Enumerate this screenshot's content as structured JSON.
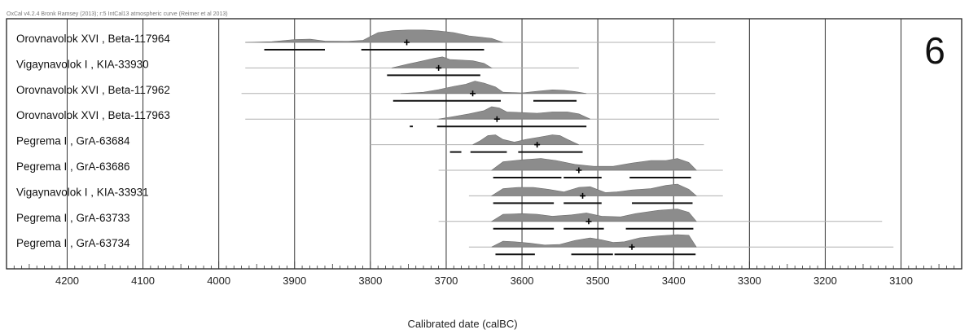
{
  "credit": "OxCal v4.2.4 Bronk Ramsey (2013); r:5 IntCal13 atmospheric curve (Reimer et al 2013)",
  "panel_number": "6",
  "chart_data": {
    "type": "calibration-plot",
    "xlabel": "Calibrated date (calBC)",
    "xlim": [
      4280,
      3020
    ],
    "x_ticks": [
      4200,
      4100,
      4000,
      3900,
      3800,
      3700,
      3600,
      3500,
      3400,
      3300,
      3200,
      3100
    ],
    "grid": true,
    "colors": {
      "distribution": "#8c8c8c",
      "range_bar": "#111111",
      "grid": "#333333",
      "baseline": "#b0b0b0"
    },
    "samples": [
      {
        "label": "Orovnavolok XVI , Beta-117964",
        "median": 3752,
        "span": [
          3965,
          3345
        ],
        "ranges": [
          [
            3940,
            3860
          ],
          [
            3812,
            3650
          ]
        ],
        "dist": [
          [
            3965,
            0
          ],
          [
            3930,
            0.05
          ],
          [
            3900,
            0.22
          ],
          [
            3880,
            0.25
          ],
          [
            3860,
            0.1
          ],
          [
            3830,
            0.08
          ],
          [
            3810,
            0.15
          ],
          [
            3790,
            0.75
          ],
          [
            3770,
            0.9
          ],
          [
            3750,
            0.95
          ],
          [
            3730,
            0.95
          ],
          [
            3710,
            0.88
          ],
          [
            3690,
            0.75
          ],
          [
            3670,
            0.5
          ],
          [
            3655,
            0.4
          ],
          [
            3640,
            0.3
          ],
          [
            3625,
            0
          ]
        ]
      },
      {
        "label": "Vigaynavolok I , KIA-33930",
        "median": 3710,
        "span": [
          3965,
          3525
        ],
        "ranges": [
          [
            3778,
            3655
          ]
        ],
        "dist": [
          [
            3772,
            0
          ],
          [
            3750,
            0.3
          ],
          [
            3730,
            0.55
          ],
          [
            3715,
            0.75
          ],
          [
            3705,
            0.85
          ],
          [
            3695,
            0.65
          ],
          [
            3680,
            0.6
          ],
          [
            3665,
            0.55
          ],
          [
            3650,
            0.35
          ],
          [
            3640,
            0
          ]
        ]
      },
      {
        "label": "Orovnavolok XVI , Beta-117962",
        "median": 3665,
        "span": [
          3970,
          3345
        ],
        "ranges": [
          [
            3770,
            3628
          ],
          [
            3585,
            3528
          ]
        ],
        "dist": [
          [
            3760,
            0
          ],
          [
            3730,
            0.1
          ],
          [
            3710,
            0.3
          ],
          [
            3690,
            0.55
          ],
          [
            3675,
            0.7
          ],
          [
            3662,
            0.95
          ],
          [
            3650,
            0.8
          ],
          [
            3635,
            0.5
          ],
          [
            3625,
            0.1
          ],
          [
            3600,
            0.05
          ],
          [
            3575,
            0.2
          ],
          [
            3560,
            0.28
          ],
          [
            3545,
            0.25
          ],
          [
            3530,
            0.15
          ],
          [
            3515,
            0
          ]
        ]
      },
      {
        "label": "Orovnavolok XVI , Beta-117963",
        "median": 3633,
        "span": [
          3965,
          3340
        ],
        "ranges": [
          [
            3748,
            3744
          ],
          [
            3712,
            3515
          ]
        ],
        "dist": [
          [
            3710,
            0
          ],
          [
            3690,
            0.2
          ],
          [
            3670,
            0.4
          ],
          [
            3650,
            0.65
          ],
          [
            3640,
            0.95
          ],
          [
            3630,
            0.85
          ],
          [
            3620,
            0.55
          ],
          [
            3600,
            0.5
          ],
          [
            3580,
            0.45
          ],
          [
            3560,
            0.55
          ],
          [
            3540,
            0.55
          ],
          [
            3525,
            0.4
          ],
          [
            3510,
            0
          ]
        ]
      },
      {
        "label": "Pegrema I , GrA-63684",
        "median": 3580,
        "span": [
          3800,
          3360
        ],
        "ranges": [
          [
            3695,
            3680
          ],
          [
            3668,
            3620
          ],
          [
            3605,
            3520
          ]
        ],
        "dist": [
          [
            3665,
            0
          ],
          [
            3655,
            0.3
          ],
          [
            3645,
            0.7
          ],
          [
            3635,
            0.75
          ],
          [
            3625,
            0.4
          ],
          [
            3610,
            0.2
          ],
          [
            3595,
            0.4
          ],
          [
            3575,
            0.6
          ],
          [
            3560,
            0.75
          ],
          [
            3550,
            0.7
          ],
          [
            3540,
            0.4
          ],
          [
            3525,
            0
          ]
        ]
      },
      {
        "label": "Pegrema I , GrA-63686",
        "median": 3525,
        "span": [
          3710,
          3335
        ],
        "ranges": [
          [
            3638,
            3548
          ],
          [
            3545,
            3495
          ],
          [
            3458,
            3377
          ]
        ],
        "dist": [
          [
            3640,
            0
          ],
          [
            3625,
            0.65
          ],
          [
            3600,
            0.8
          ],
          [
            3575,
            0.9
          ],
          [
            3555,
            0.75
          ],
          [
            3530,
            0.45
          ],
          [
            3505,
            0.3
          ],
          [
            3480,
            0.3
          ],
          [
            3455,
            0.55
          ],
          [
            3430,
            0.75
          ],
          [
            3410,
            0.75
          ],
          [
            3395,
            0.9
          ],
          [
            3380,
            0.6
          ],
          [
            3370,
            0
          ]
        ]
      },
      {
        "label": "Vigaynavolok I , KIA-33931",
        "median": 3520,
        "span": [
          3670,
          3335
        ],
        "ranges": [
          [
            3638,
            3558
          ],
          [
            3545,
            3495
          ],
          [
            3455,
            3375
          ]
        ],
        "dist": [
          [
            3640,
            0
          ],
          [
            3625,
            0.55
          ],
          [
            3605,
            0.65
          ],
          [
            3585,
            0.65
          ],
          [
            3565,
            0.5
          ],
          [
            3545,
            0.3
          ],
          [
            3525,
            0.65
          ],
          [
            3510,
            0.7
          ],
          [
            3490,
            0.25
          ],
          [
            3475,
            0.3
          ],
          [
            3455,
            0.45
          ],
          [
            3430,
            0.55
          ],
          [
            3410,
            0.8
          ],
          [
            3395,
            0.9
          ],
          [
            3380,
            0.5
          ],
          [
            3370,
            0
          ]
        ]
      },
      {
        "label": "Pegrema I , GrA-63733",
        "median": 3512,
        "span": [
          3710,
          3125
        ],
        "ranges": [
          [
            3638,
            3558
          ],
          [
            3545,
            3492
          ],
          [
            3463,
            3374
          ]
        ],
        "dist": [
          [
            3640,
            0
          ],
          [
            3625,
            0.55
          ],
          [
            3600,
            0.6
          ],
          [
            3580,
            0.55
          ],
          [
            3560,
            0.4
          ],
          [
            3535,
            0.5
          ],
          [
            3515,
            0.65
          ],
          [
            3495,
            0.4
          ],
          [
            3470,
            0.35
          ],
          [
            3450,
            0.6
          ],
          [
            3420,
            0.85
          ],
          [
            3395,
            0.95
          ],
          [
            3380,
            0.7
          ],
          [
            3370,
            0
          ]
        ]
      },
      {
        "label": "Pegrema I , GrA-63734",
        "median": 3455,
        "span": [
          3670,
          3110
        ],
        "ranges": [
          [
            3635,
            3583
          ],
          [
            3535,
            3480
          ],
          [
            3478,
            3371
          ]
        ],
        "dist": [
          [
            3640,
            0
          ],
          [
            3625,
            0.45
          ],
          [
            3610,
            0.4
          ],
          [
            3590,
            0.3
          ],
          [
            3570,
            0.15
          ],
          [
            3550,
            0.2
          ],
          [
            3530,
            0.5
          ],
          [
            3510,
            0.7
          ],
          [
            3495,
            0.55
          ],
          [
            3480,
            0.35
          ],
          [
            3465,
            0.4
          ],
          [
            3445,
            0.7
          ],
          [
            3420,
            0.85
          ],
          [
            3395,
            0.95
          ],
          [
            3380,
            0.9
          ],
          [
            3370,
            0
          ]
        ]
      }
    ]
  }
}
